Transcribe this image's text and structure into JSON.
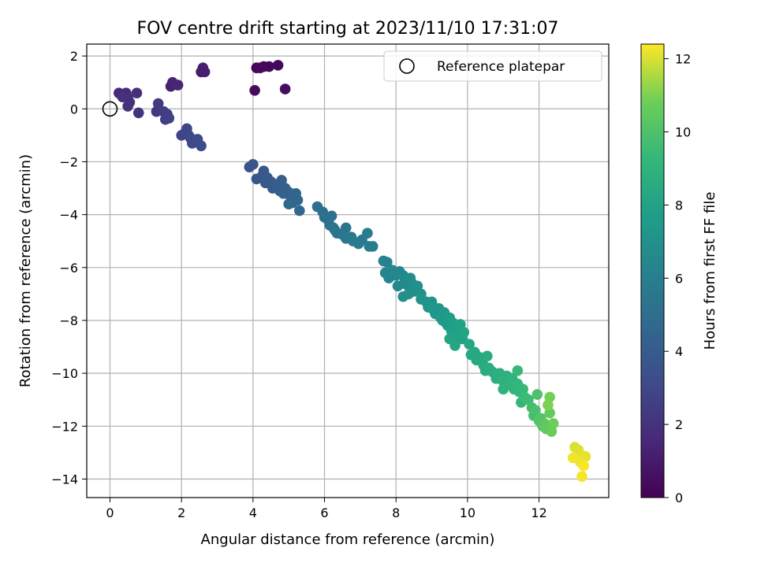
{
  "chart_data": {
    "type": "scatter",
    "title": "FOV centre drift starting at 2023/11/10 17:31:07",
    "xlabel": "Angular distance from reference (arcmin)",
    "ylabel": "Rotation from reference (arcmin)",
    "xlim": [
      -0.65,
      13.95
    ],
    "ylim": [
      -14.7,
      2.45
    ],
    "xticks": [
      0,
      2,
      4,
      6,
      8,
      10,
      12
    ],
    "yticks": [
      2,
      0,
      -2,
      -4,
      -6,
      -8,
      -10,
      -12,
      -14
    ],
    "grid": true,
    "legend": {
      "placement": "top-right",
      "entries": [
        "Reference platepar"
      ]
    },
    "reference_point": {
      "x": 0,
      "y": 0,
      "label": "Reference platepar"
    },
    "colorbar": {
      "label": "Hours from first FF file",
      "range": [
        0,
        12.4
      ],
      "ticks": [
        0,
        2,
        4,
        6,
        8,
        10,
        12
      ],
      "colormap": "viridis"
    },
    "points": [
      [
        4.1,
        1.55,
        0.15
      ],
      [
        4.3,
        1.6,
        0.2
      ],
      [
        4.45,
        1.6,
        0.25
      ],
      [
        4.7,
        1.65,
        0.3
      ],
      [
        4.2,
        1.55,
        0.35
      ],
      [
        4.05,
        0.7,
        0.45
      ],
      [
        4.9,
        0.75,
        0.55
      ],
      [
        2.55,
        1.4,
        1.0
      ],
      [
        2.65,
        1.4,
        1.1
      ],
      [
        2.6,
        1.55,
        1.2
      ],
      [
        1.7,
        0.85,
        1.3
      ],
      [
        1.75,
        1.0,
        1.4
      ],
      [
        1.9,
        0.9,
        1.5
      ],
      [
        0.25,
        0.6,
        1.7
      ],
      [
        0.45,
        0.6,
        1.75
      ],
      [
        0.5,
        0.4,
        1.8
      ],
      [
        0.75,
        0.6,
        1.85
      ],
      [
        0.55,
        0.25,
        1.9
      ],
      [
        0.35,
        0.45,
        1.95
      ],
      [
        0.5,
        0.1,
        2.0
      ],
      [
        0.8,
        -0.15,
        2.1
      ],
      [
        1.3,
        -0.1,
        2.3
      ],
      [
        1.35,
        0.2,
        2.4
      ],
      [
        1.5,
        -0.1,
        2.5
      ],
      [
        1.6,
        -0.2,
        2.55
      ],
      [
        1.55,
        -0.4,
        2.6
      ],
      [
        1.65,
        -0.35,
        2.65
      ],
      [
        2.0,
        -1.0,
        2.8
      ],
      [
        2.15,
        -0.75,
        2.85
      ],
      [
        2.1,
        -0.9,
        2.9
      ],
      [
        2.2,
        -1.0,
        2.95
      ],
      [
        2.25,
        -1.1,
        3.0
      ],
      [
        2.3,
        -1.3,
        3.05
      ],
      [
        2.45,
        -1.15,
        3.1
      ],
      [
        2.55,
        -1.4,
        3.15
      ],
      [
        3.9,
        -2.2,
        3.6
      ],
      [
        4.0,
        -2.1,
        3.65
      ],
      [
        4.1,
        -2.65,
        3.7
      ],
      [
        4.25,
        -2.55,
        3.75
      ],
      [
        4.3,
        -2.35,
        3.8
      ],
      [
        4.4,
        -2.6,
        3.85
      ],
      [
        4.35,
        -2.8,
        3.9
      ],
      [
        4.5,
        -2.75,
        3.95
      ],
      [
        4.55,
        -3.0,
        4.0
      ],
      [
        4.6,
        -2.85,
        4.05
      ],
      [
        4.7,
        -2.9,
        4.1
      ],
      [
        4.75,
        -3.1,
        4.15
      ],
      [
        4.8,
        -2.7,
        4.2
      ],
      [
        4.9,
        -3.0,
        4.25
      ],
      [
        4.85,
        -3.2,
        4.3
      ],
      [
        5.0,
        -3.15,
        4.35
      ],
      [
        5.05,
        -3.3,
        4.4
      ],
      [
        5.1,
        -3.55,
        4.45
      ],
      [
        5.2,
        -3.2,
        4.5
      ],
      [
        5.25,
        -3.45,
        4.55
      ],
      [
        5.3,
        -3.85,
        4.6
      ],
      [
        5.0,
        -3.6,
        4.65
      ],
      [
        5.8,
        -3.7,
        5.0
      ],
      [
        5.95,
        -3.9,
        5.05
      ],
      [
        6.0,
        -4.1,
        5.1
      ],
      [
        6.1,
        -4.2,
        5.15
      ],
      [
        6.2,
        -4.05,
        5.2
      ],
      [
        6.15,
        -4.4,
        5.25
      ],
      [
        6.25,
        -4.5,
        5.3
      ],
      [
        6.3,
        -4.6,
        5.35
      ],
      [
        6.35,
        -4.7,
        5.4
      ],
      [
        6.5,
        -4.75,
        5.45
      ],
      [
        6.6,
        -4.5,
        5.5
      ],
      [
        6.6,
        -4.9,
        5.55
      ],
      [
        6.75,
        -4.85,
        5.6
      ],
      [
        6.8,
        -5.0,
        5.65
      ],
      [
        6.95,
        -5.1,
        5.7
      ],
      [
        7.05,
        -4.95,
        5.75
      ],
      [
        7.2,
        -4.7,
        5.8
      ],
      [
        7.25,
        -5.2,
        5.85
      ],
      [
        7.35,
        -5.2,
        5.9
      ],
      [
        7.65,
        -5.75,
        6.2
      ],
      [
        7.75,
        -5.8,
        6.25
      ],
      [
        7.7,
        -6.2,
        6.3
      ],
      [
        7.8,
        -6.4,
        6.35
      ],
      [
        7.9,
        -6.1,
        6.4
      ],
      [
        8.0,
        -6.3,
        6.45
      ],
      [
        8.1,
        -6.15,
        6.5
      ],
      [
        8.05,
        -6.7,
        6.55
      ],
      [
        8.2,
        -6.3,
        6.6
      ],
      [
        8.25,
        -6.5,
        6.65
      ],
      [
        8.3,
        -6.65,
        6.7
      ],
      [
        8.4,
        -6.4,
        6.75
      ],
      [
        8.45,
        -6.6,
        6.8
      ],
      [
        8.5,
        -6.9,
        6.85
      ],
      [
        8.2,
        -7.1,
        6.9
      ],
      [
        8.35,
        -7.0,
        6.95
      ],
      [
        8.6,
        -6.7,
        7.0
      ],
      [
        8.7,
        -7.0,
        7.05
      ],
      [
        8.7,
        -7.2,
        7.1
      ],
      [
        8.85,
        -7.3,
        7.15
      ],
      [
        8.9,
        -7.5,
        7.2
      ],
      [
        9.0,
        -7.3,
        7.25
      ],
      [
        9.05,
        -7.6,
        7.3
      ],
      [
        9.1,
        -7.75,
        7.35
      ],
      [
        9.2,
        -7.55,
        7.4
      ],
      [
        9.25,
        -7.9,
        7.45
      ],
      [
        9.3,
        -8.0,
        7.5
      ],
      [
        9.35,
        -7.7,
        7.55
      ],
      [
        9.4,
        -8.1,
        7.6
      ],
      [
        9.45,
        -8.2,
        7.65
      ],
      [
        9.5,
        -7.9,
        7.7
      ],
      [
        9.55,
        -8.4,
        7.75
      ],
      [
        9.6,
        -8.1,
        7.8
      ],
      [
        9.65,
        -8.5,
        7.85
      ],
      [
        9.7,
        -8.3,
        7.9
      ],
      [
        9.75,
        -8.6,
        7.95
      ],
      [
        9.8,
        -8.15,
        8.0
      ],
      [
        9.85,
        -8.7,
        8.05
      ],
      [
        9.9,
        -8.45,
        8.1
      ],
      [
        9.5,
        -8.7,
        8.15
      ],
      [
        9.65,
        -8.95,
        8.2
      ],
      [
        10.05,
        -8.9,
        8.25
      ],
      [
        10.1,
        -9.3,
        8.3
      ],
      [
        10.2,
        -9.2,
        8.35
      ],
      [
        10.25,
        -9.5,
        8.4
      ],
      [
        10.35,
        -9.4,
        8.45
      ],
      [
        10.45,
        -9.7,
        8.5
      ],
      [
        10.55,
        -9.35,
        8.55
      ],
      [
        10.5,
        -9.9,
        8.6
      ],
      [
        10.6,
        -9.8,
        8.65
      ],
      [
        10.7,
        -9.95,
        8.7
      ],
      [
        10.8,
        -10.2,
        8.75
      ],
      [
        10.9,
        -10.0,
        8.8
      ],
      [
        11.0,
        -10.3,
        8.85
      ],
      [
        11.1,
        -10.1,
        8.9
      ],
      [
        11.0,
        -10.6,
        8.95
      ],
      [
        11.2,
        -10.4,
        9.0
      ],
      [
        11.25,
        -10.2,
        9.05
      ],
      [
        11.3,
        -10.6,
        9.1
      ],
      [
        11.4,
        -10.4,
        9.15
      ],
      [
        11.45,
        -10.7,
        9.2
      ],
      [
        11.5,
        -11.1,
        9.25
      ],
      [
        11.55,
        -10.6,
        9.3
      ],
      [
        11.4,
        -9.9,
        9.35
      ],
      [
        11.6,
        -10.9,
        9.5
      ],
      [
        11.7,
        -11.0,
        9.6
      ],
      [
        11.8,
        -11.3,
        9.7
      ],
      [
        11.85,
        -11.6,
        9.8
      ],
      [
        11.9,
        -11.4,
        9.9
      ],
      [
        11.95,
        -10.8,
        10.0
      ],
      [
        12.0,
        -11.8,
        10.1
      ],
      [
        12.05,
        -11.7,
        10.2
      ],
      [
        12.1,
        -12.0,
        10.3
      ],
      [
        12.15,
        -11.9,
        10.4
      ],
      [
        12.2,
        -12.1,
        10.5
      ],
      [
        12.3,
        -11.5,
        10.6
      ],
      [
        12.35,
        -12.2,
        10.7
      ],
      [
        12.4,
        -11.9,
        10.8
      ],
      [
        12.3,
        -10.9,
        10.9
      ],
      [
        12.25,
        -11.2,
        11.0
      ],
      [
        13.0,
        -12.8,
        12.0
      ],
      [
        13.1,
        -12.9,
        12.05
      ],
      [
        13.2,
        -13.1,
        12.1
      ],
      [
        13.3,
        -13.15,
        12.15
      ],
      [
        13.15,
        -13.35,
        12.2
      ],
      [
        12.95,
        -13.2,
        12.25
      ],
      [
        13.2,
        -13.9,
        12.3
      ],
      [
        13.25,
        -13.5,
        12.35
      ]
    ]
  }
}
